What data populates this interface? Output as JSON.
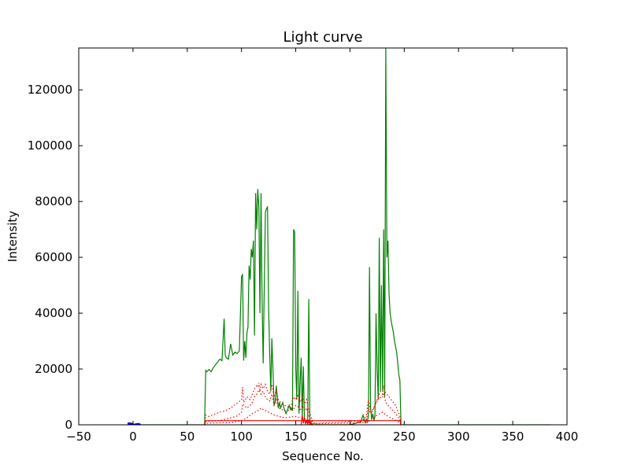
{
  "chart_data": {
    "type": "line",
    "title": "Light curve",
    "xlabel": "Sequence No.",
    "ylabel": "Intensity",
    "xlim": [
      -50,
      400
    ],
    "ylim": [
      0,
      135000
    ],
    "grid": false,
    "x_ticks": [
      "−50",
      "0",
      "50",
      "100",
      "150",
      "200",
      "250",
      "300",
      "350",
      "400"
    ],
    "x_tick_values": [
      -50,
      0,
      50,
      100,
      150,
      200,
      250,
      300,
      350,
      400
    ],
    "y_ticks": [
      "0",
      "20000",
      "40000",
      "60000",
      "80000",
      "100000",
      "120000"
    ],
    "y_tick_values": [
      0,
      20000,
      40000,
      60000,
      80000,
      100000,
      120000
    ],
    "series": [
      {
        "color": "#008000",
        "style": "solid",
        "x": [
          -5,
          66,
          67,
          68,
          70,
          72,
          74,
          76,
          78,
          80,
          82,
          84,
          85,
          86,
          88,
          90,
          92,
          94,
          96,
          98,
          100,
          101,
          102,
          103,
          104,
          105,
          106,
          107,
          108,
          109,
          110,
          111,
          112,
          113,
          114,
          115,
          116,
          117,
          118,
          119,
          120,
          121,
          122,
          123,
          124,
          125,
          126,
          127,
          128,
          129,
          130,
          131,
          132,
          133,
          134,
          135,
          136,
          137,
          138,
          139,
          140,
          141,
          142,
          143,
          144,
          145,
          146,
          147,
          148,
          149,
          150,
          151,
          152,
          153,
          154,
          155,
          156,
          157,
          158,
          159,
          160,
          161,
          162,
          163,
          164,
          165,
          166,
          170,
          180,
          190,
          200,
          205,
          210,
          212,
          214,
          215,
          216,
          217,
          218,
          219,
          220,
          221,
          222,
          223,
          224,
          225,
          226,
          227,
          228,
          229,
          230,
          231,
          232,
          233,
          234,
          235,
          236,
          237,
          238,
          239,
          240,
          241,
          242,
          243,
          244,
          245,
          246,
          247,
          385
        ],
        "y": [
          0,
          0,
          19500,
          19000,
          19800,
          19000,
          20500,
          21500,
          22500,
          23500,
          23000,
          38000,
          25000,
          24000,
          23500,
          29000,
          25000,
          26000,
          25500,
          26500,
          53000,
          54000,
          23000,
          30000,
          24000,
          33000,
          35000,
          57000,
          52000,
          63000,
          60000,
          66000,
          32000,
          83000,
          70000,
          84500,
          78000,
          40000,
          83000,
          45000,
          22000,
          50000,
          76000,
          77500,
          78000,
          42000,
          25000,
          12000,
          31000,
          20000,
          7000,
          8000,
          14000,
          10000,
          6000,
          8000,
          6000,
          7000,
          8000,
          6000,
          5000,
          4000,
          5000,
          6000,
          7000,
          5500,
          6000,
          5000,
          70000,
          69000,
          20000,
          9000,
          48000,
          4000,
          15000,
          24000,
          3000,
          21000,
          2000,
          500,
          1500,
          200,
          45000,
          500,
          300,
          0,
          0,
          0,
          0,
          0,
          0,
          500,
          1200,
          3500,
          800,
          2000,
          1000,
          3500,
          56500,
          6000,
          2000,
          4000,
          1500,
          3000,
          40000,
          20000,
          9000,
          67000,
          12000,
          50000,
          12000,
          70000,
          10000,
          135000,
          60000,
          66000,
          47000,
          40000,
          37000,
          35000,
          33000,
          30000,
          28000,
          26000,
          22000,
          18000,
          16000,
          0,
          0
        ]
      },
      {
        "color": "#ff0000",
        "style": "dotted",
        "x": [
          66,
          67,
          70,
          75,
          80,
          85,
          90,
          95,
          100,
          101,
          102,
          105,
          108,
          110,
          112,
          114,
          115,
          116,
          117,
          118,
          120,
          122,
          124,
          126,
          128,
          130,
          132,
          134,
          136,
          140,
          145,
          148,
          150,
          152,
          154,
          156,
          158,
          160,
          162,
          164,
          166,
          168,
          170,
          200,
          210,
          215,
          217,
          218,
          219,
          220,
          222,
          224,
          226,
          228,
          230,
          231,
          232,
          234,
          236,
          238,
          240,
          242,
          244,
          246,
          247
        ],
        "y": [
          0,
          3500,
          3000,
          3800,
          4500,
          5000,
          6000,
          7500,
          9000,
          13500,
          8000,
          10000,
          9000,
          11000,
          13000,
          14000,
          13500,
          15000,
          12000,
          14500,
          13000,
          14500,
          12000,
          11000,
          14500,
          10000,
          12500,
          9000,
          8000,
          7000,
          6000,
          10000,
          9000,
          11000,
          8000,
          10000,
          7500,
          9000,
          5000,
          3000,
          1000,
          500,
          0,
          0,
          1000,
          3000,
          9000,
          7000,
          5000,
          4000,
          6000,
          8000,
          10000,
          12000,
          11000,
          14000,
          12000,
          11000,
          10000,
          9000,
          8000,
          7000,
          5000,
          3000,
          0
        ]
      },
      {
        "color": "#ff0000",
        "style": "dotted",
        "x": [
          66,
          67,
          80,
          95,
          100,
          101,
          105,
          108,
          110,
          112,
          114,
          116,
          118,
          120,
          122,
          124,
          126,
          128,
          130,
          132,
          134,
          140,
          148,
          150,
          152,
          154,
          156,
          158,
          160,
          162,
          166,
          215,
          217,
          219,
          221,
          223,
          225,
          227,
          229,
          231,
          233,
          235,
          240,
          246,
          247
        ],
        "y": [
          0,
          1200,
          1500,
          3000,
          4500,
          7500,
          6000,
          7000,
          8000,
          10000,
          11000,
          12500,
          11000,
          12000,
          10000,
          9000,
          8500,
          11000,
          7000,
          9000,
          6000,
          5000,
          5500,
          7000,
          6500,
          5000,
          7000,
          5000,
          6000,
          3000,
          500,
          1500,
          6000,
          4000,
          5500,
          7000,
          8500,
          10000,
          9500,
          11000,
          8000,
          7000,
          5000,
          2000,
          0
        ]
      },
      {
        "color": "#ff0000",
        "style": "dotted",
        "x": [
          66,
          67,
          90,
          100,
          105,
          110,
          115,
          118,
          120,
          125,
          130,
          140,
          150,
          155,
          160,
          166,
          215,
          220,
          225,
          230,
          235,
          240,
          246,
          247
        ],
        "y": [
          0,
          600,
          800,
          1500,
          2500,
          4000,
          5000,
          6000,
          5500,
          4500,
          3500,
          2500,
          3000,
          2500,
          2000,
          300,
          800,
          2000,
          3500,
          4500,
          3000,
          2000,
          800,
          0
        ]
      },
      {
        "color": "#ff0000",
        "style": "solid",
        "x": [
          66,
          67,
          246,
          247
        ],
        "y": [
          0,
          1500,
          1500,
          0
        ]
      },
      {
        "color": "#ff0000",
        "style": "solid",
        "x": [
          155,
          156,
          157,
          158,
          159,
          160,
          161,
          162,
          163,
          164,
          165
        ],
        "y": [
          0,
          3500,
          500,
          2500,
          300,
          1800,
          200,
          1500,
          100,
          1000,
          0
        ]
      },
      {
        "color": "#0000ff",
        "style": "solid",
        "x": [
          -5,
          -3,
          -1,
          1,
          3,
          5,
          7
        ],
        "y": [
          400,
          500,
          300,
          0,
          200,
          300,
          0
        ]
      }
    ]
  }
}
